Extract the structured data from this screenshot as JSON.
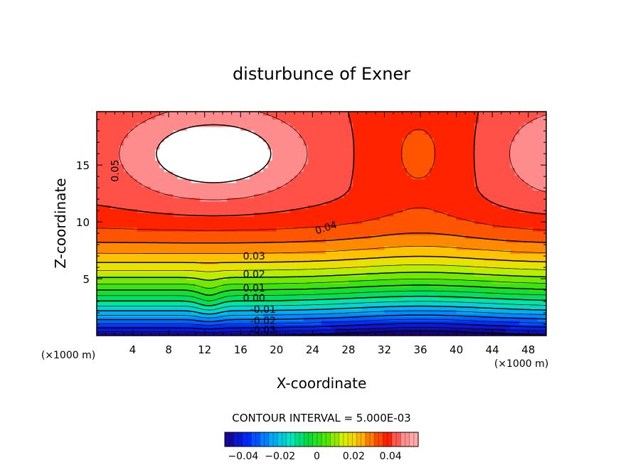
{
  "chart_data": {
    "type": "contour",
    "title": "disturbunce of Exner",
    "xlabel": "X-coordinate",
    "ylabel": "Z-coordinate",
    "x_unit": "(×1000 m)",
    "x_unit_right": "(×1000 m)",
    "xlim": [
      0,
      50
    ],
    "ylim": [
      0,
      19.7
    ],
    "x_ticks": [
      4,
      8,
      12,
      16,
      20,
      24,
      28,
      32,
      36,
      40,
      44,
      48
    ],
    "y_ticks": [
      5,
      10,
      15
    ],
    "contour_interval_text": "CONTOUR INTERVAL = 5.000E-03",
    "contour_interval": 0.005,
    "contour_labels": [
      {
        "value": "0.05",
        "x": 2,
        "y": 14.5
      },
      {
        "value": "0.04",
        "x": 25.5,
        "y": 9.5
      },
      {
        "value": "0.03",
        "x": 17.5,
        "y": 7.0
      },
      {
        "value": "0.02",
        "x": 17.5,
        "y": 5.4
      },
      {
        "value": "0.01",
        "x": 17.5,
        "y": 4.2
      },
      {
        "value": "0.00",
        "x": 17.5,
        "y": 3.3
      },
      {
        "value": "-0.01",
        "x": 18.5,
        "y": 2.3
      },
      {
        "value": "-0.02",
        "x": 18.5,
        "y": 1.3
      },
      {
        "value": "-0.03",
        "x": 18.5,
        "y": 0.5
      }
    ],
    "colorbar": {
      "min": -0.05,
      "max": 0.055,
      "ticks": [
        {
          "value": -0.04,
          "label": "−0.04"
        },
        {
          "value": -0.02,
          "label": "−0.02"
        },
        {
          "value": 0,
          "label": "0"
        },
        {
          "value": 0.02,
          "label": "0.02"
        },
        {
          "value": 0.04,
          "label": "0.04"
        }
      ]
    }
  }
}
